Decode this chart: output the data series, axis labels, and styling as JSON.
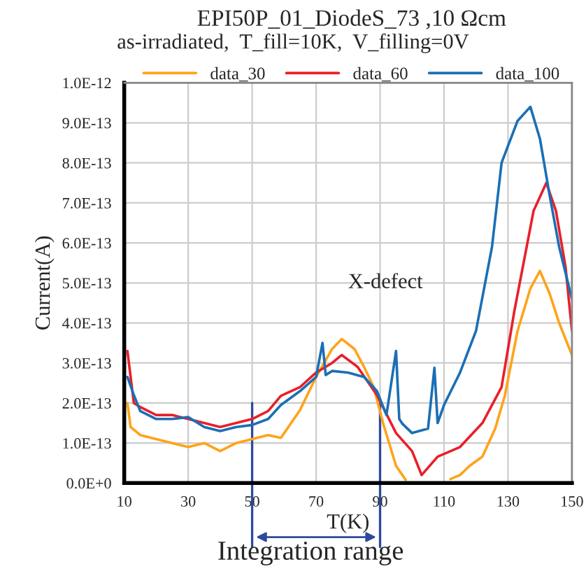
{
  "chart_data": {
    "type": "line",
    "title": "EPI50P_01_DiodeS_73 ,10 Ωcm",
    "subtitle": "as-irradiated,  T_fill=10K,  V_filling=0V",
    "xlabel": "T(K)",
    "ylabel": "Current(A)",
    "annotations": [
      "X-defect",
      "Integration range"
    ],
    "xlim": [
      10,
      150
    ],
    "xticks": [
      10,
      30,
      50,
      70,
      90,
      110,
      130,
      150
    ],
    "ylim": [
      0,
      1e-12
    ],
    "yticks": [
      {
        "value": 0,
        "label": "0.0E+0"
      },
      {
        "value": 1e-13,
        "label": "1.0E-13"
      },
      {
        "value": 2e-13,
        "label": "2.0E-13"
      },
      {
        "value": 3e-13,
        "label": "3.0E-13"
      },
      {
        "value": 4e-13,
        "label": "4.0E-13"
      },
      {
        "value": 5e-13,
        "label": "5.0E-13"
      },
      {
        "value": 6e-13,
        "label": "6.0E-13"
      },
      {
        "value": 7e-13,
        "label": "7.0E-13"
      },
      {
        "value": 8e-13,
        "label": "8.0E-13"
      },
      {
        "value": 9e-13,
        "label": "9.0E-13"
      },
      {
        "value": 1e-12,
        "label": "1.0E-12"
      }
    ],
    "grid": true,
    "legend": "top",
    "ref_lines": [
      {
        "axis": "x",
        "value": 50,
        "color": "#2e4a9e"
      },
      {
        "axis": "x",
        "value": 90,
        "color": "#2e4a9e"
      }
    ],
    "series": [
      {
        "name": "data_30",
        "color": "#ffa31a",
        "x": [
          11,
          12,
          15,
          20,
          25,
          30,
          35,
          40,
          45,
          50,
          55,
          59,
          65,
          70,
          75,
          78,
          82,
          85,
          88,
          91,
          95,
          98,
          100,
          112,
          115,
          118,
          122,
          126,
          129,
          133,
          137,
          140,
          143,
          146,
          150
        ],
        "values": [
          2e-13,
          1.4e-13,
          1.2e-13,
          1.1e-13,
          1e-13,
          9e-14,
          1e-13,
          8e-14,
          1e-13,
          1.1e-13,
          1.2e-13,
          1.13e-13,
          1.83e-13,
          2.65e-13,
          3.35e-13,
          3.6e-13,
          3.35e-13,
          2.9e-13,
          2.4e-13,
          1.48e-13,
          4.3e-14,
          8e-15,
          null,
          1e-14,
          2e-14,
          4.3e-14,
          6.6e-14,
          1.36e-13,
          2.18e-13,
          3.8e-13,
          4.86e-13,
          5.3e-13,
          4.74e-13,
          4e-13,
          3.2e-13
        ]
      },
      {
        "name": "data_60",
        "color": "#e8202a",
        "x": [
          11,
          13,
          15,
          20,
          25,
          30,
          35,
          40,
          45,
          50,
          55,
          59,
          65,
          70,
          75,
          78,
          83,
          89,
          95,
          100,
          103,
          108,
          115,
          122,
          128,
          132,
          138,
          142,
          145,
          148,
          150
        ],
        "values": [
          3.3e-13,
          2e-13,
          1.9e-13,
          1.7e-13,
          1.7e-13,
          1.6e-13,
          1.5e-13,
          1.4e-13,
          1.5e-13,
          1.6e-13,
          1.8e-13,
          2.18e-13,
          2.4e-13,
          2.76e-13,
          3e-13,
          3.2e-13,
          2.9e-13,
          2.2e-13,
          1.25e-13,
          8e-14,
          2e-14,
          6.6e-14,
          9e-14,
          1.5e-13,
          2.4e-13,
          4.3e-13,
          6.8e-13,
          7.5e-13,
          6.8e-13,
          5.4e-13,
          3.8e-13
        ]
      },
      {
        "name": "data_100",
        "color": "#1a6fb5",
        "x": [
          11,
          13,
          15,
          20,
          25,
          30,
          35,
          40,
          45,
          50,
          55,
          59,
          65,
          70,
          72,
          73,
          75,
          80,
          85,
          89,
          92,
          95,
          96,
          97,
          100,
          105,
          107,
          108,
          110,
          115,
          120,
          125,
          128,
          133,
          137,
          140,
          143,
          146,
          150
        ],
        "values": [
          2.65e-13,
          2.2e-13,
          1.8e-13,
          1.6e-13,
          1.6e-13,
          1.65e-13,
          1.4e-13,
          1.3e-13,
          1.4e-13,
          1.45e-13,
          1.6e-13,
          1.95e-13,
          2.3e-13,
          2.65e-13,
          3.5e-13,
          2.7e-13,
          2.8e-13,
          2.76e-13,
          2.65e-13,
          2.3e-13,
          1.7e-13,
          3.3e-13,
          1.6e-13,
          1.48e-13,
          1.25e-13,
          1.36e-13,
          2.88e-13,
          1.5e-13,
          1.95e-13,
          2.76e-13,
          3.8e-13,
          5.9e-13,
          8e-13,
          9.05e-13,
          9.4e-13,
          8.6e-13,
          7.2e-13,
          5.9e-13,
          4.6e-13
        ]
      }
    ]
  }
}
